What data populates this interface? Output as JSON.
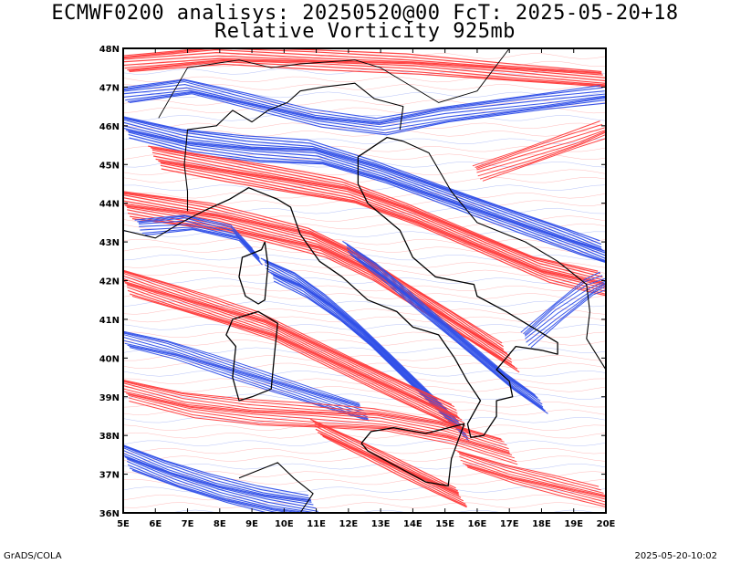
{
  "title_line1": "ECMWF0200 analisys: 20250520@00 FcT: 2025-05-20+18",
  "title_line2": "Relative Vorticity 925mb",
  "footer_left": "GrADS/COLA",
  "footer_right": "2025-05-20-10:02",
  "map": {
    "lon_range": [
      5,
      20
    ],
    "lat_range": [
      36,
      48
    ],
    "lon_ticks": [
      "5E",
      "6E",
      "7E",
      "8E",
      "9E",
      "10E",
      "11E",
      "12E",
      "13E",
      "14E",
      "15E",
      "16E",
      "17E",
      "18E",
      "19E",
      "20E"
    ],
    "lat_ticks": [
      "36N",
      "37N",
      "38N",
      "39N",
      "40N",
      "41N",
      "42N",
      "43N",
      "44N",
      "45N",
      "46N",
      "47N",
      "48N"
    ],
    "colors": {
      "positive": "#ff3b3b",
      "negative": "#2f4fe8",
      "coast": "#000000"
    }
  }
}
